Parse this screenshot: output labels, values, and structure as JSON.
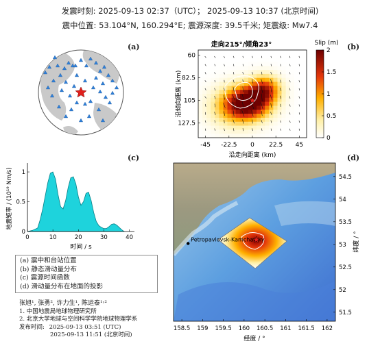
{
  "header": {
    "line1": "发震时刻: 2025-09-13 02:37（UTC）； 2025-09-13  10:37 (北京时间)",
    "line2": "震中位置: 53.104°N,  160.294°E;   震源深度: 39.5千米; 矩震级: Mw7.4"
  },
  "panels": {
    "a": "(a)",
    "b": "(b)",
    "c": "(c)",
    "d": "(d)"
  },
  "colors": {
    "stf_fill": "#1ed3dc",
    "station": "#2f7fd8",
    "epicenter": "#e0201c"
  },
  "chart_data": [
    {
      "id": "b",
      "type": "heatmap",
      "title": "走向215°/倾角23°",
      "xlabel": "沿走向距离 (km)",
      "ylabel": "沿倾向距离 (km)",
      "xticks": [
        "-45",
        "-22.5",
        "0",
        "22.5",
        "45"
      ],
      "yticks": [
        "60",
        "82.5",
        "105",
        "127.5"
      ],
      "xlim": [
        -52,
        52
      ],
      "ylim": [
        142,
        55
      ],
      "colorbar": {
        "label": "Slip (m)",
        "ticks": [
          "0",
          "0.5",
          "1",
          "1.5",
          "2"
        ],
        "range": [
          0,
          2
        ]
      },
      "slip_peaks": [
        {
          "x": -3,
          "y": 107,
          "slip": 2.0,
          "sx": 14,
          "sy": 11
        },
        {
          "x": 12,
          "y": 94,
          "slip": 1.3,
          "sx": 10,
          "sy": 9
        },
        {
          "x": -18,
          "y": 112,
          "slip": 0.8,
          "sx": 16,
          "sy": 13
        }
      ],
      "hypocenter": {
        "x": 0,
        "y": 105
      }
    },
    {
      "id": "c",
      "type": "area",
      "xlabel": "时间 / s",
      "ylabel": "地震矩率 / (10¹⁹ Nm/s)",
      "xticks": [
        "0",
        "10",
        "20",
        "30",
        "40"
      ],
      "yticks": [
        "0",
        "0.5",
        "1"
      ],
      "xlim": [
        0,
        42
      ],
      "ylim": [
        0,
        1.15
      ],
      "x": [
        0,
        2,
        4,
        5,
        6,
        7,
        8,
        9,
        10,
        11,
        12,
        13,
        14,
        15,
        16,
        17,
        18,
        19,
        20,
        21,
        22,
        23,
        24,
        25,
        26,
        27,
        28,
        29,
        30,
        31,
        32,
        33,
        34,
        35,
        36,
        37,
        38
      ],
      "values": [
        0,
        0.02,
        0.06,
        0.2,
        0.38,
        0.6,
        0.82,
        0.98,
        1.0,
        0.88,
        0.62,
        0.42,
        0.38,
        0.52,
        0.74,
        0.9,
        0.92,
        0.8,
        0.58,
        0.44,
        0.5,
        0.64,
        0.66,
        0.52,
        0.32,
        0.17,
        0.1,
        0.07,
        0.05,
        0.05,
        0.08,
        0.12,
        0.13,
        0.11,
        0.07,
        0.03,
        0
      ]
    },
    {
      "id": "d",
      "type": "map",
      "xlabel": "经度 / °",
      "ylabel": "纬度 / °",
      "xticks": [
        "158.5",
        "159",
        "159.5",
        "160",
        "160.5",
        "161",
        "161.5",
        "162"
      ],
      "yticks": [
        "54.5",
        "54",
        "53.5",
        "53",
        "52.5",
        "52",
        "51.5"
      ],
      "xlim": [
        158.3,
        162.2
      ],
      "ylim": [
        51.3,
        54.8
      ],
      "city": {
        "name": "Petropavlovsk-Kamchatsky",
        "lon": 158.65,
        "lat": 53.02
      },
      "epicenter": {
        "lon": 160.294,
        "lat": 53.104
      }
    }
  ],
  "legend": {
    "a": "(a) 震中和台站位置",
    "b": "(b) 静态滑动量分布",
    "c": "(c) 震源时间函数",
    "d": "(d) 滑动量分布在地面的投影"
  },
  "credits": {
    "authors": "张旭¹, 张勇², 许力生¹, 陈运泰¹˒²",
    "aff1": "1. 中国地震局地球物理研究所",
    "aff2": "2. 北京大学地球与空间科学学院地球物理学系",
    "release_label": "发布时间:",
    "release_utc": "2025-09-13  03:51 (UTC)",
    "release_bj": "2025-09-13  11:51 (北京时间)"
  }
}
